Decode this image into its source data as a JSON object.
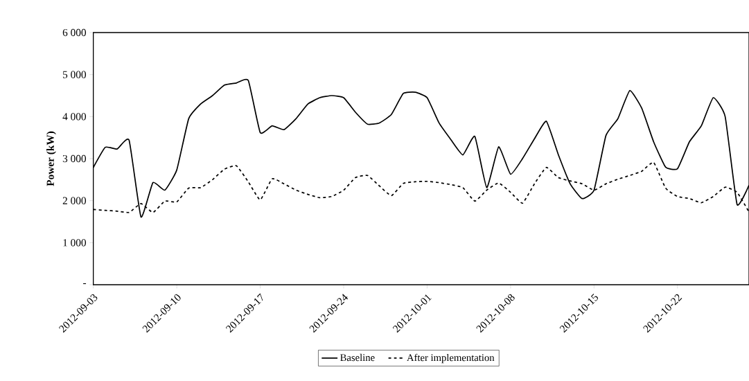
{
  "chart_data": {
    "type": "line",
    "ylabel": "Power (kW)",
    "x": [
      "2012-09-03",
      "2012-09-04",
      "2012-09-05",
      "2012-09-06",
      "2012-09-07",
      "2012-09-08",
      "2012-09-09",
      "2012-09-10",
      "2012-09-11",
      "2012-09-12",
      "2012-09-13",
      "2012-09-14",
      "2012-09-15",
      "2012-09-16",
      "2012-09-17",
      "2012-09-18",
      "2012-09-19",
      "2012-09-20",
      "2012-09-21",
      "2012-09-22",
      "2012-09-23",
      "2012-09-24",
      "2012-09-25",
      "2012-09-26",
      "2012-09-27",
      "2012-09-28",
      "2012-09-29",
      "2012-09-30",
      "2012-10-01",
      "2012-10-02",
      "2012-10-03",
      "2012-10-04",
      "2012-10-05",
      "2012-10-06",
      "2012-10-07",
      "2012-10-08",
      "2012-10-09",
      "2012-10-10",
      "2012-10-11",
      "2012-10-12",
      "2012-10-13",
      "2012-10-14",
      "2012-10-15",
      "2012-10-16",
      "2012-10-17",
      "2012-10-18",
      "2012-10-19",
      "2012-10-20",
      "2012-10-21",
      "2012-10-22",
      "2012-10-23",
      "2012-10-24",
      "2012-10-25",
      "2012-10-26",
      "2012-10-27",
      "2012-10-28"
    ],
    "series": [
      {
        "name": "Baseline",
        "color": "#000000",
        "line_style": "solid",
        "values": [
          2790,
          3270,
          3230,
          3440,
          1610,
          2430,
          2250,
          2730,
          3950,
          4300,
          4500,
          4750,
          4800,
          4860,
          3620,
          3780,
          3690,
          3950,
          4300,
          4450,
          4500,
          4450,
          4100,
          3820,
          3850,
          4050,
          4550,
          4580,
          4450,
          3850,
          3450,
          3090,
          3530,
          2310,
          3280,
          2630,
          3000,
          3470,
          3890,
          3100,
          2400,
          2050,
          2250,
          3550,
          3950,
          4620,
          4200,
          3400,
          2800,
          2760,
          3400,
          3780,
          4450,
          4000,
          1910,
          2370
        ]
      },
      {
        "name": "After implementation",
        "color": "#000000",
        "line_style": "dashed",
        "values": [
          1790,
          1770,
          1750,
          1720,
          1930,
          1720,
          1990,
          1970,
          2300,
          2310,
          2500,
          2750,
          2830,
          2450,
          2020,
          2520,
          2400,
          2250,
          2150,
          2070,
          2100,
          2250,
          2550,
          2600,
          2350,
          2120,
          2410,
          2450,
          2460,
          2430,
          2380,
          2310,
          1990,
          2250,
          2420,
          2200,
          1940,
          2400,
          2790,
          2550,
          2470,
          2400,
          2250,
          2400,
          2510,
          2600,
          2700,
          2910,
          2300,
          2100,
          2050,
          1950,
          2100,
          2320,
          2200,
          1730
        ]
      }
    ],
    "xlim": [
      "2012-09-03",
      "2012-10-28"
    ],
    "xticks": [
      "2012-09-03",
      "2012-09-10",
      "2012-09-17",
      "2012-09-24",
      "2012-10-01",
      "2012-10-08",
      "2012-10-15",
      "2012-10-22"
    ],
    "ylim": [
      0,
      6000
    ],
    "yticks": [
      {
        "value": 0,
        "label": "-"
      },
      {
        "value": 1000,
        "label": "1 000"
      },
      {
        "value": 2000,
        "label": "2 000"
      },
      {
        "value": 3000,
        "label": "3 000"
      },
      {
        "value": 4000,
        "label": "4 000"
      },
      {
        "value": 5000,
        "label": "5 000"
      },
      {
        "value": 6000,
        "label": "6 000"
      }
    ],
    "legend": "bottom"
  }
}
